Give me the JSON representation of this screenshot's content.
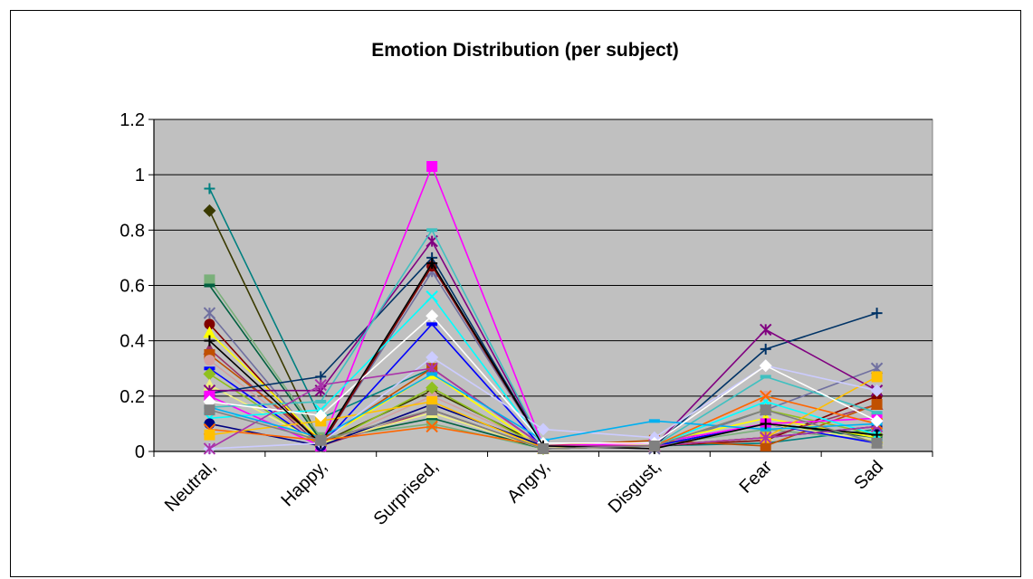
{
  "chart_data": {
    "type": "line",
    "title": "Emotion Distribution (per subject)",
    "xlabel": "",
    "ylabel": "",
    "categories": [
      "Neutral,",
      "Happy,",
      "Surprised,",
      "Angry,",
      "Disgust,",
      "Fear",
      "Sad"
    ],
    "ylim": [
      0,
      1.2
    ],
    "yticks": [
      "0",
      "0.2",
      "0.4",
      "0.6",
      "0.8",
      "1",
      "1.2"
    ],
    "grid": true,
    "legend": "none",
    "plot_background": "#c0c0c0",
    "series": [
      {
        "color": "#008080",
        "marker": "plus",
        "values": [
          0.95,
          0.12,
          0.3,
          0.02,
          0.02,
          0.03,
          0.08
        ]
      },
      {
        "color": "#3a3a00",
        "marker": "diamond",
        "values": [
          0.87,
          0.03,
          0.22,
          0.02,
          0.02,
          0.1,
          0.06
        ]
      },
      {
        "color": "#7ab07a",
        "marker": "square",
        "values": [
          0.62,
          0.05,
          0.1,
          0.01,
          0.02,
          0.08,
          0.04
        ]
      },
      {
        "color": "#006040",
        "marker": "dash",
        "values": [
          0.6,
          0.04,
          0.12,
          0.01,
          0.02,
          0.1,
          0.05
        ]
      },
      {
        "color": "#7070a0",
        "marker": "star",
        "values": [
          0.5,
          0.02,
          0.65,
          0.02,
          0.01,
          0.15,
          0.3
        ]
      },
      {
        "color": "#800000",
        "marker": "circle",
        "values": [
          0.46,
          0.02,
          0.67,
          0.02,
          0.02,
          0.04,
          0.2
        ]
      },
      {
        "color": "#ffff00",
        "marker": "triangle",
        "values": [
          0.43,
          0.04,
          0.28,
          0.01,
          0.03,
          0.12,
          0.05
        ]
      },
      {
        "color": "#993366",
        "marker": "triangle",
        "values": [
          0.37,
          0.02,
          0.15,
          0.01,
          0.02,
          0.05,
          0.17
        ]
      },
      {
        "color": "#c05000",
        "marker": "square",
        "values": [
          0.35,
          0.04,
          0.3,
          0.02,
          0.04,
          0.02,
          0.17
        ]
      },
      {
        "color": "#d4a0a0",
        "marker": "circle",
        "values": [
          0.33,
          0.02,
          0.2,
          0.02,
          0.02,
          0.2,
          0.1
        ]
      },
      {
        "color": "#0000ff",
        "marker": "dash",
        "values": [
          0.3,
          0.02,
          0.46,
          0.01,
          0.02,
          0.1,
          0.03
        ]
      },
      {
        "color": "#90c020",
        "marker": "diamond",
        "values": [
          0.28,
          0.02,
          0.23,
          0.01,
          0.02,
          0.15,
          0.06
        ]
      },
      {
        "color": "#f0f080",
        "marker": "triangle",
        "values": [
          0.24,
          0.03,
          0.14,
          0.01,
          0.03,
          0.1,
          0.04
        ]
      },
      {
        "color": "#003366",
        "marker": "plus",
        "values": [
          0.21,
          0.27,
          0.7,
          0.02,
          0.02,
          0.37,
          0.5
        ]
      },
      {
        "color": "#800080",
        "marker": "star",
        "values": [
          0.22,
          0.22,
          0.76,
          0.02,
          0.02,
          0.44,
          0.22
        ]
      },
      {
        "color": "#ff00ff",
        "marker": "square",
        "values": [
          0.2,
          0.02,
          1.03,
          0.02,
          0.03,
          0.1,
          0.12
        ]
      },
      {
        "color": "#40c0c0",
        "marker": "dash",
        "values": [
          0.16,
          0.18,
          0.8,
          0.02,
          0.02,
          0.27,
          0.14
        ]
      },
      {
        "color": "#00ffff",
        "marker": "cross",
        "values": [
          0.12,
          0.15,
          0.56,
          0.02,
          0.02,
          0.18,
          0.06
        ]
      },
      {
        "color": "#000080",
        "marker": "circle",
        "values": [
          0.1,
          0.02,
          0.17,
          0.02,
          0.02,
          0.05,
          0.09
        ]
      },
      {
        "color": "#ff6600",
        "marker": "cross",
        "values": [
          0.08,
          0.04,
          0.09,
          0.02,
          0.02,
          0.2,
          0.1
        ]
      },
      {
        "color": "#ffc000",
        "marker": "square",
        "values": [
          0.06,
          0.11,
          0.18,
          0.01,
          0.02,
          0.05,
          0.27
        ]
      },
      {
        "color": "#ccccff",
        "marker": "diamond",
        "values": [
          0.01,
          0.03,
          0.34,
          0.08,
          0.05,
          0.31,
          0.22
        ]
      },
      {
        "color": "#aa33aa",
        "marker": "star",
        "values": [
          0.01,
          0.24,
          0.3,
          0.02,
          0.02,
          0.05,
          0.09
        ]
      },
      {
        "color": "#00b0f0",
        "marker": "dash",
        "values": [
          0.16,
          0.05,
          0.28,
          0.04,
          0.11,
          0.08,
          0.1
        ]
      },
      {
        "color": "#ffffff",
        "marker": "diamond",
        "values": [
          0.18,
          0.13,
          0.49,
          0.03,
          0.03,
          0.31,
          0.11
        ]
      },
      {
        "color": "#000000",
        "marker": "plus",
        "values": [
          0.4,
          0.03,
          0.68,
          0.02,
          0.01,
          0.1,
          0.06
        ]
      },
      {
        "color": "#808080",
        "marker": "square",
        "values": [
          0.15,
          0.04,
          0.15,
          0.01,
          0.02,
          0.15,
          0.03
        ]
      }
    ]
  }
}
